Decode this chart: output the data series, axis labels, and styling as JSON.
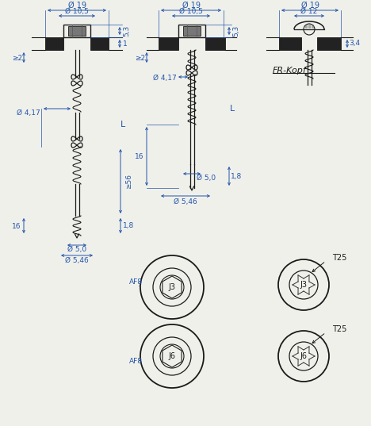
{
  "bg_color": "#f0f0eb",
  "line_color": "#1a1a1a",
  "dim_color": "#2255aa",
  "dims": {
    "phi19": "Ø 19",
    "phi10_5": "Ø 10,5",
    "phi12": "Ø 12",
    "phi4_17": "Ø 4,17",
    "phi5_0": "Ø 5,0",
    "phi5_46": "Ø 5,46",
    "d1": "1",
    "d5_3": "5,3",
    "d_ge2": "≥2",
    "d_ge56": "≥56",
    "d1_8": "1,8",
    "d16": "16",
    "dL": "L",
    "d3_4": "3,4",
    "dAF8": "AF8",
    "dJ3": "J3",
    "dJ6": "J6",
    "dT25": "T25",
    "dFRKopf": "FR-Kopf"
  }
}
